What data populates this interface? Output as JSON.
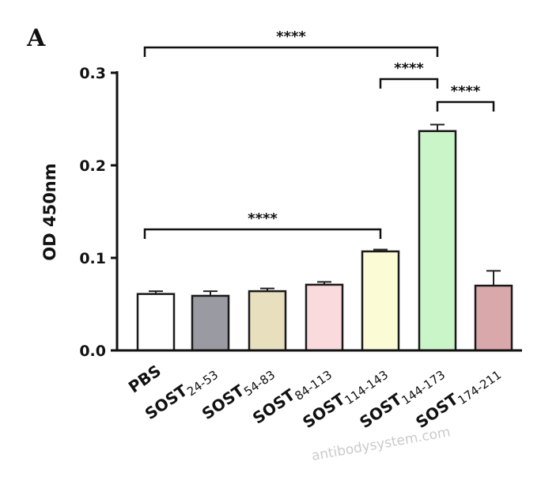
{
  "panel_label": "A",
  "watermark": "antibodysystem.com",
  "chart_data": {
    "type": "bar",
    "title": "",
    "xlabel": "",
    "ylabel": "OD 450nm",
    "ylim": [
      0,
      0.3
    ],
    "yticks": [
      "0.0",
      "0.1",
      "0.2",
      "0.3"
    ],
    "categories": [
      {
        "main": "PBS",
        "sub": ""
      },
      {
        "main": "SOST",
        "sub": "24-53"
      },
      {
        "main": "SOST",
        "sub": "54-83"
      },
      {
        "main": "SOST",
        "sub": "84-113"
      },
      {
        "main": "SOST",
        "sub": "114-143"
      },
      {
        "main": "SOST",
        "sub": "144-173"
      },
      {
        "main": "SOST",
        "sub": "174-211"
      }
    ],
    "values": [
      0.061,
      0.059,
      0.064,
      0.071,
      0.107,
      0.237,
      0.07
    ],
    "errors": [
      0.003,
      0.005,
      0.003,
      0.003,
      0.002,
      0.007,
      0.016
    ],
    "colors": [
      "#ffffff",
      "#9a9aa2",
      "#e8dfbe",
      "#fbdadd",
      "#fbfbd6",
      "#caf5c9",
      "#d9a8aa"
    ],
    "significance": [
      {
        "from": 0,
        "to": 5,
        "label": "****"
      },
      {
        "from": 4,
        "to": 5,
        "label": "****"
      },
      {
        "from": 5,
        "to": 6,
        "label": "****"
      },
      {
        "from": 0,
        "to": 4,
        "label": "****"
      }
    ]
  }
}
